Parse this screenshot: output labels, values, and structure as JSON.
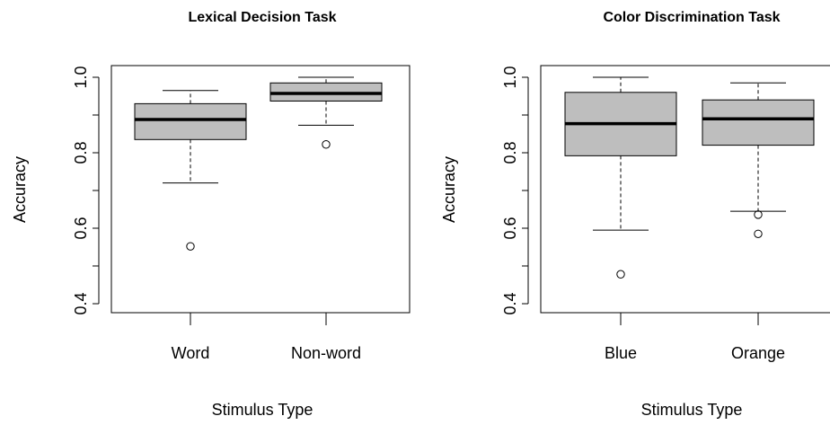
{
  "chart_data": [
    {
      "type": "boxplot",
      "title": "Lexical Decision Task",
      "xlabel": "Stimulus Type",
      "ylabel": "Accuracy",
      "ylim": [
        0.4,
        1.0
      ],
      "yticks": [
        "0.4",
        "0.6",
        "0.8",
        "1.0"
      ],
      "categories": [
        "Word",
        "Non-word"
      ],
      "box_color": "#bebebe",
      "boxes": [
        {
          "name": "Word",
          "whisker_low": 0.72,
          "q1": 0.835,
          "median": 0.888,
          "q3": 0.93,
          "whisker_high": 0.965,
          "outliers": [
            0.552
          ]
        },
        {
          "name": "Non-word",
          "whisker_low": 0.873,
          "q1": 0.937,
          "median": 0.957,
          "q3": 0.985,
          "whisker_high": 1.0,
          "outliers": [
            0.822
          ]
        }
      ]
    },
    {
      "type": "boxplot",
      "title": "Color Discrimination Task",
      "xlabel": "Stimulus Type",
      "ylabel": "Accuracy",
      "ylim": [
        0.4,
        1.0
      ],
      "yticks": [
        "0.4",
        "0.6",
        "0.8",
        "1.0"
      ],
      "categories": [
        "Blue",
        "Orange"
      ],
      "box_color": "#bebebe",
      "boxes": [
        {
          "name": "Blue",
          "whisker_low": 0.595,
          "q1": 0.792,
          "median": 0.877,
          "q3": 0.96,
          "whisker_high": 1.0,
          "outliers": [
            0.478
          ]
        },
        {
          "name": "Orange",
          "whisker_low": 0.645,
          "q1": 0.82,
          "median": 0.89,
          "q3": 0.94,
          "whisker_high": 0.985,
          "outliers": [
            0.636,
            0.585
          ]
        }
      ]
    }
  ]
}
